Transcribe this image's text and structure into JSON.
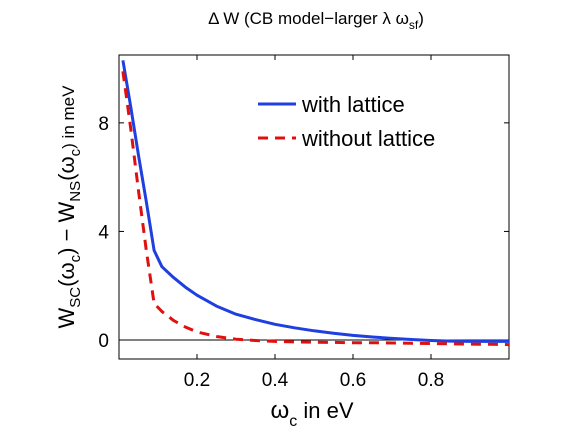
{
  "chart_data": {
    "type": "line",
    "title": {
      "prefix": "Δ W (CB model−larger λ ω",
      "sub": "sf",
      "suffix": ")"
    },
    "xlabel": {
      "main": "ω",
      "sub": "c",
      "suffix": " in eV"
    },
    "ylabel": {
      "p1": "W",
      "s1": "SC",
      "p2": "(ω",
      "s2": "c",
      "p3": ") − W",
      "s3": "NS",
      "p4": "(ω",
      "s4": "c",
      "p5": ")  in meV"
    },
    "xlim": [
      0.0,
      1.0
    ],
    "ylim": [
      -0.7,
      10.5
    ],
    "xticks": [
      {
        "value": 0.2,
        "label": "0.2"
      },
      {
        "value": 0.4,
        "label": "0.4"
      },
      {
        "value": 0.6,
        "label": "0.6"
      },
      {
        "value": 0.8,
        "label": "0.8"
      }
    ],
    "yticks": [
      {
        "value": 0,
        "label": "0"
      },
      {
        "value": 4,
        "label": "4"
      },
      {
        "value": 8,
        "label": "8"
      }
    ],
    "zero_line": true,
    "grid": false,
    "legend_position": "top-right",
    "series": [
      {
        "name": "with lattice",
        "color": "#1f3fe0",
        "dash": "solid",
        "x": [
          0.01,
          0.03,
          0.05,
          0.07,
          0.09,
          0.11,
          0.14,
          0.17,
          0.2,
          0.25,
          0.3,
          0.35,
          0.4,
          0.45,
          0.5,
          0.55,
          0.6,
          0.65,
          0.7,
          0.75,
          0.8,
          0.85,
          0.9,
          0.95,
          1.0
        ],
        "y": [
          10.3,
          8.6,
          6.8,
          5.1,
          3.3,
          2.7,
          2.3,
          1.95,
          1.65,
          1.25,
          0.95,
          0.75,
          0.58,
          0.45,
          0.34,
          0.25,
          0.17,
          0.11,
          0.06,
          0.02,
          -0.02,
          -0.04,
          -0.05,
          -0.05,
          -0.05
        ]
      },
      {
        "name": "without lattice",
        "color": "#e01010",
        "dash": "dashed",
        "x": [
          0.01,
          0.03,
          0.05,
          0.07,
          0.09,
          0.11,
          0.14,
          0.17,
          0.2,
          0.25,
          0.3,
          0.35,
          0.4,
          0.45,
          0.5,
          0.55,
          0.6,
          0.65,
          0.7,
          0.75,
          0.8,
          0.85,
          0.9,
          0.95,
          1.0
        ],
        "y": [
          9.9,
          7.8,
          5.5,
          3.3,
          1.35,
          1.05,
          0.72,
          0.48,
          0.3,
          0.13,
          0.03,
          -0.02,
          -0.05,
          -0.07,
          -0.08,
          -0.09,
          -0.1,
          -0.1,
          -0.11,
          -0.12,
          -0.13,
          -0.14,
          -0.15,
          -0.16,
          -0.17
        ]
      }
    ]
  }
}
